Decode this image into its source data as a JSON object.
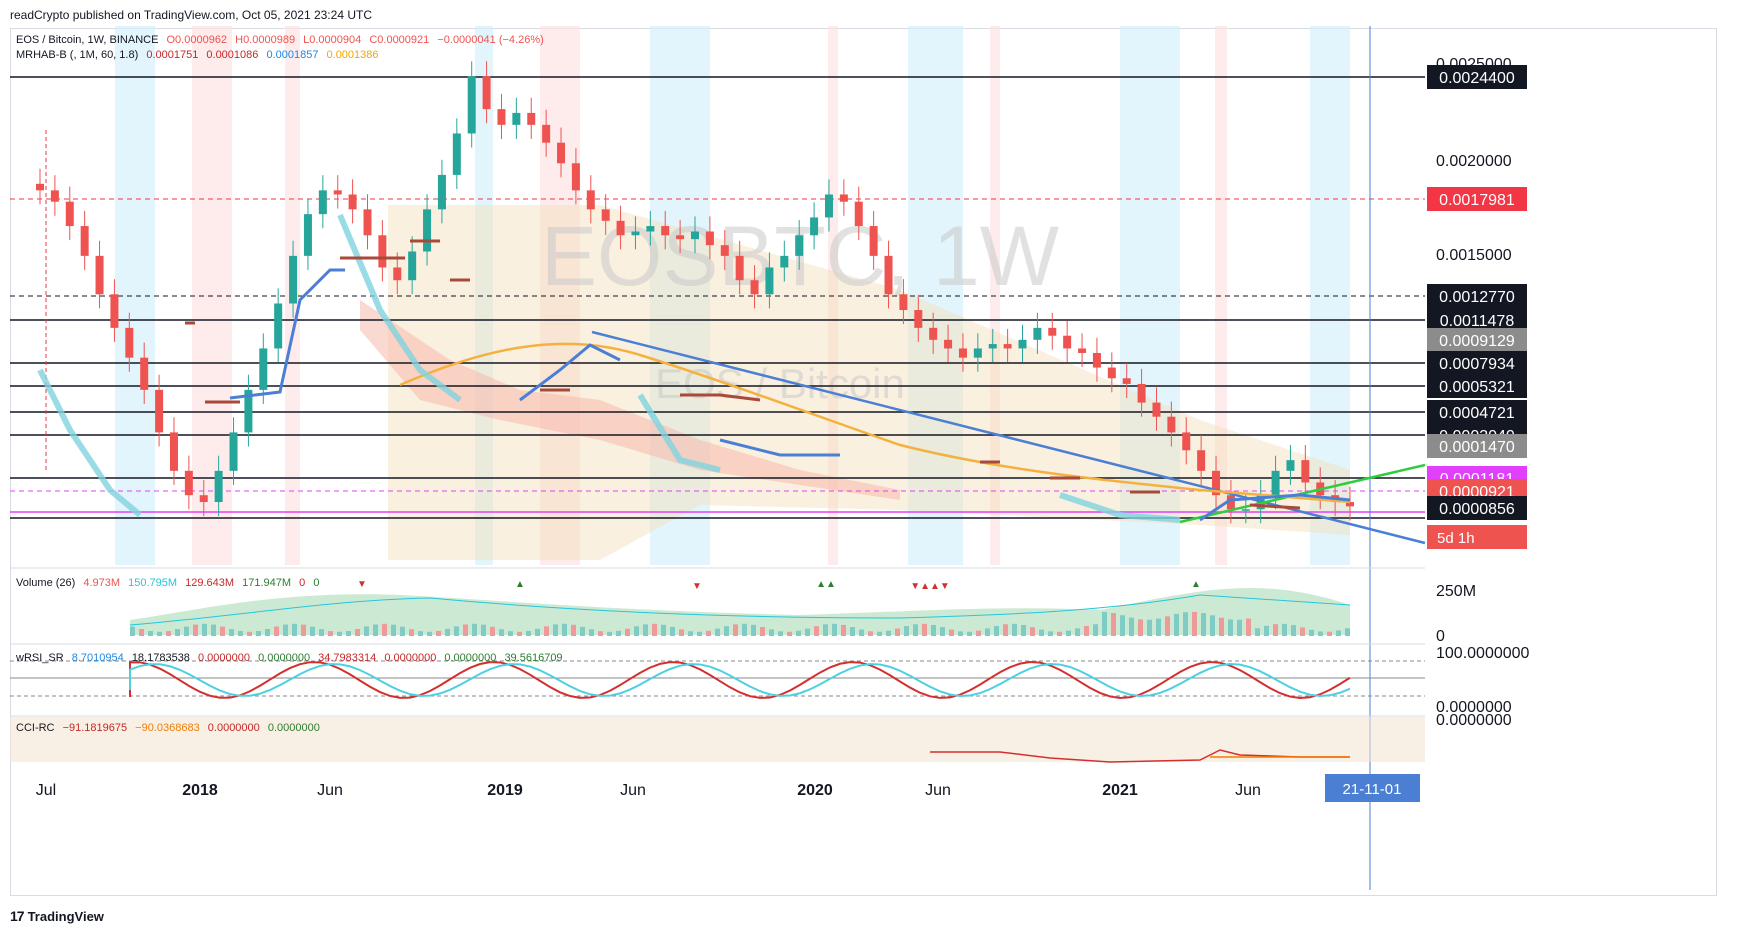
{
  "publisher_line": "readCrypto published on TradingView.com, Oct 05, 2021 23:24 UTC",
  "footer": {
    "logo_text": "TradingView"
  },
  "colors": {
    "up": "#26a69a",
    "down": "#ef5350",
    "trend_blue": "#4a7fd4",
    "ma_orange": "#f4b13f",
    "teal_band": "#7fd3e0",
    "brown": "#a84a3a",
    "magenta": "#e040fb",
    "green_line": "#2ecc40"
  },
  "chart_data": {
    "type": "candlestick",
    "symbol_watermark": "EOSBTC, 1W",
    "symbol_subtitle": "EOS / Bitcoin",
    "legend_main": {
      "name": "EOS / Bitcoin, 1W, BINANCE",
      "o": "O0.0000962",
      "h": "H0.0000989",
      "l": "L0.0000904",
      "c": "C0.0000921",
      "chg": "−0.0000041 (−4.26%)"
    },
    "legend_indicator": {
      "name": "MRHAB-B (, 1M, 60, 1.8)",
      "values": [
        "0.0001751",
        "0.0001086",
        "0.0001857",
        "0.0001386"
      ]
    },
    "x_axis_labels": [
      "Jul",
      "2018",
      "Jun",
      "2019",
      "Jun",
      "2020",
      "Jun",
      "2021",
      "Jun"
    ],
    "x_axis_highlight": "21-11-01",
    "y_axis_ticks": [
      "0.0025000",
      "0.0020000",
      "0.0015000"
    ],
    "price_levels": [
      {
        "value": "0.0024400",
        "bg": "#131722"
      },
      {
        "value": "0.0017981",
        "bg": "#f23645"
      },
      {
        "value": "0.0012770",
        "bg": "#131722"
      },
      {
        "value": "0.0011478",
        "bg": "#131722"
      },
      {
        "value": "0.0009129",
        "bg": "#8c8c8c"
      },
      {
        "value": "0.0007934",
        "bg": "#131722"
      },
      {
        "value": "0.0005321",
        "bg": "#131722"
      },
      {
        "value": "0.0004721",
        "bg": "#131722"
      },
      {
        "value": "0.0003040",
        "bg": "#131722"
      },
      {
        "value": "0.0001470",
        "bg": "#8c8c8c"
      },
      {
        "value": "0.0001181",
        "bg": "#e040fb"
      },
      {
        "value": "0.0000921",
        "bg": "#ef5350"
      },
      {
        "value": "0.0000856",
        "bg": "#131722"
      }
    ],
    "countdown": "5d 1h",
    "weekly_close": [
      0.00098,
      0.0009,
      0.00075,
      0.0006,
      0.00045,
      0.00035,
      0.00028,
      0.00022,
      0.00016,
      0.00012,
      0.0001,
      9.5e-05,
      0.00012,
      0.00016,
      0.00022,
      0.0003,
      0.00042,
      0.0006,
      0.00082,
      0.00098,
      0.00095,
      0.00085,
      0.0007,
      0.00055,
      0.0005,
      0.00062,
      0.00085,
      0.0011,
      0.0015,
      0.0023,
      0.0018,
      0.0016,
      0.00175,
      0.0016,
      0.0014,
      0.0012,
      0.00098,
      0.00085,
      0.00078,
      0.0007,
      0.00072,
      0.00075,
      0.0007,
      0.00068,
      0.00072,
      0.00065,
      0.0006,
      0.0005,
      0.00045,
      0.00055,
      0.0006,
      0.0007,
      0.0008,
      0.00095,
      0.0009,
      0.00075,
      0.0006,
      0.00045,
      0.0004,
      0.00035,
      0.00032,
      0.0003,
      0.00028,
      0.0003,
      0.00031,
      0.0003,
      0.00032,
      0.00035,
      0.00033,
      0.0003,
      0.00029,
      0.00026,
      0.00024,
      0.00023,
      0.0002,
      0.00018,
      0.00016,
      0.00014,
      0.00012,
      0.0001,
      9e-05,
      9e-05,
      0.0001,
      0.00012,
      0.00013,
      0.00011,
      0.0001,
      9.5e-05,
      9.2e-05
    ],
    "volume": {
      "title": "Volume (26)",
      "values": [
        "4.973M",
        "150.795M",
        "129.643M",
        "171.947M",
        "0",
        "0"
      ],
      "axis_top": "250M",
      "axis_bottom": "0"
    },
    "wrsi": {
      "title": "wRSI_SR",
      "values": [
        "8.7010954",
        "18.1783538",
        "0.0000000",
        "0.0000000",
        "34.7983314",
        "0.0000000",
        "0.0000000",
        "39.5616709"
      ],
      "axis_top": "100.0000000",
      "axis_bottom": "0.0000000"
    },
    "cci": {
      "title": "CCI-RC",
      "values": [
        "−91.1819675",
        "−90.0368683",
        "0.0000000",
        "0.0000000"
      ],
      "axis_top": "0.0000000"
    }
  }
}
